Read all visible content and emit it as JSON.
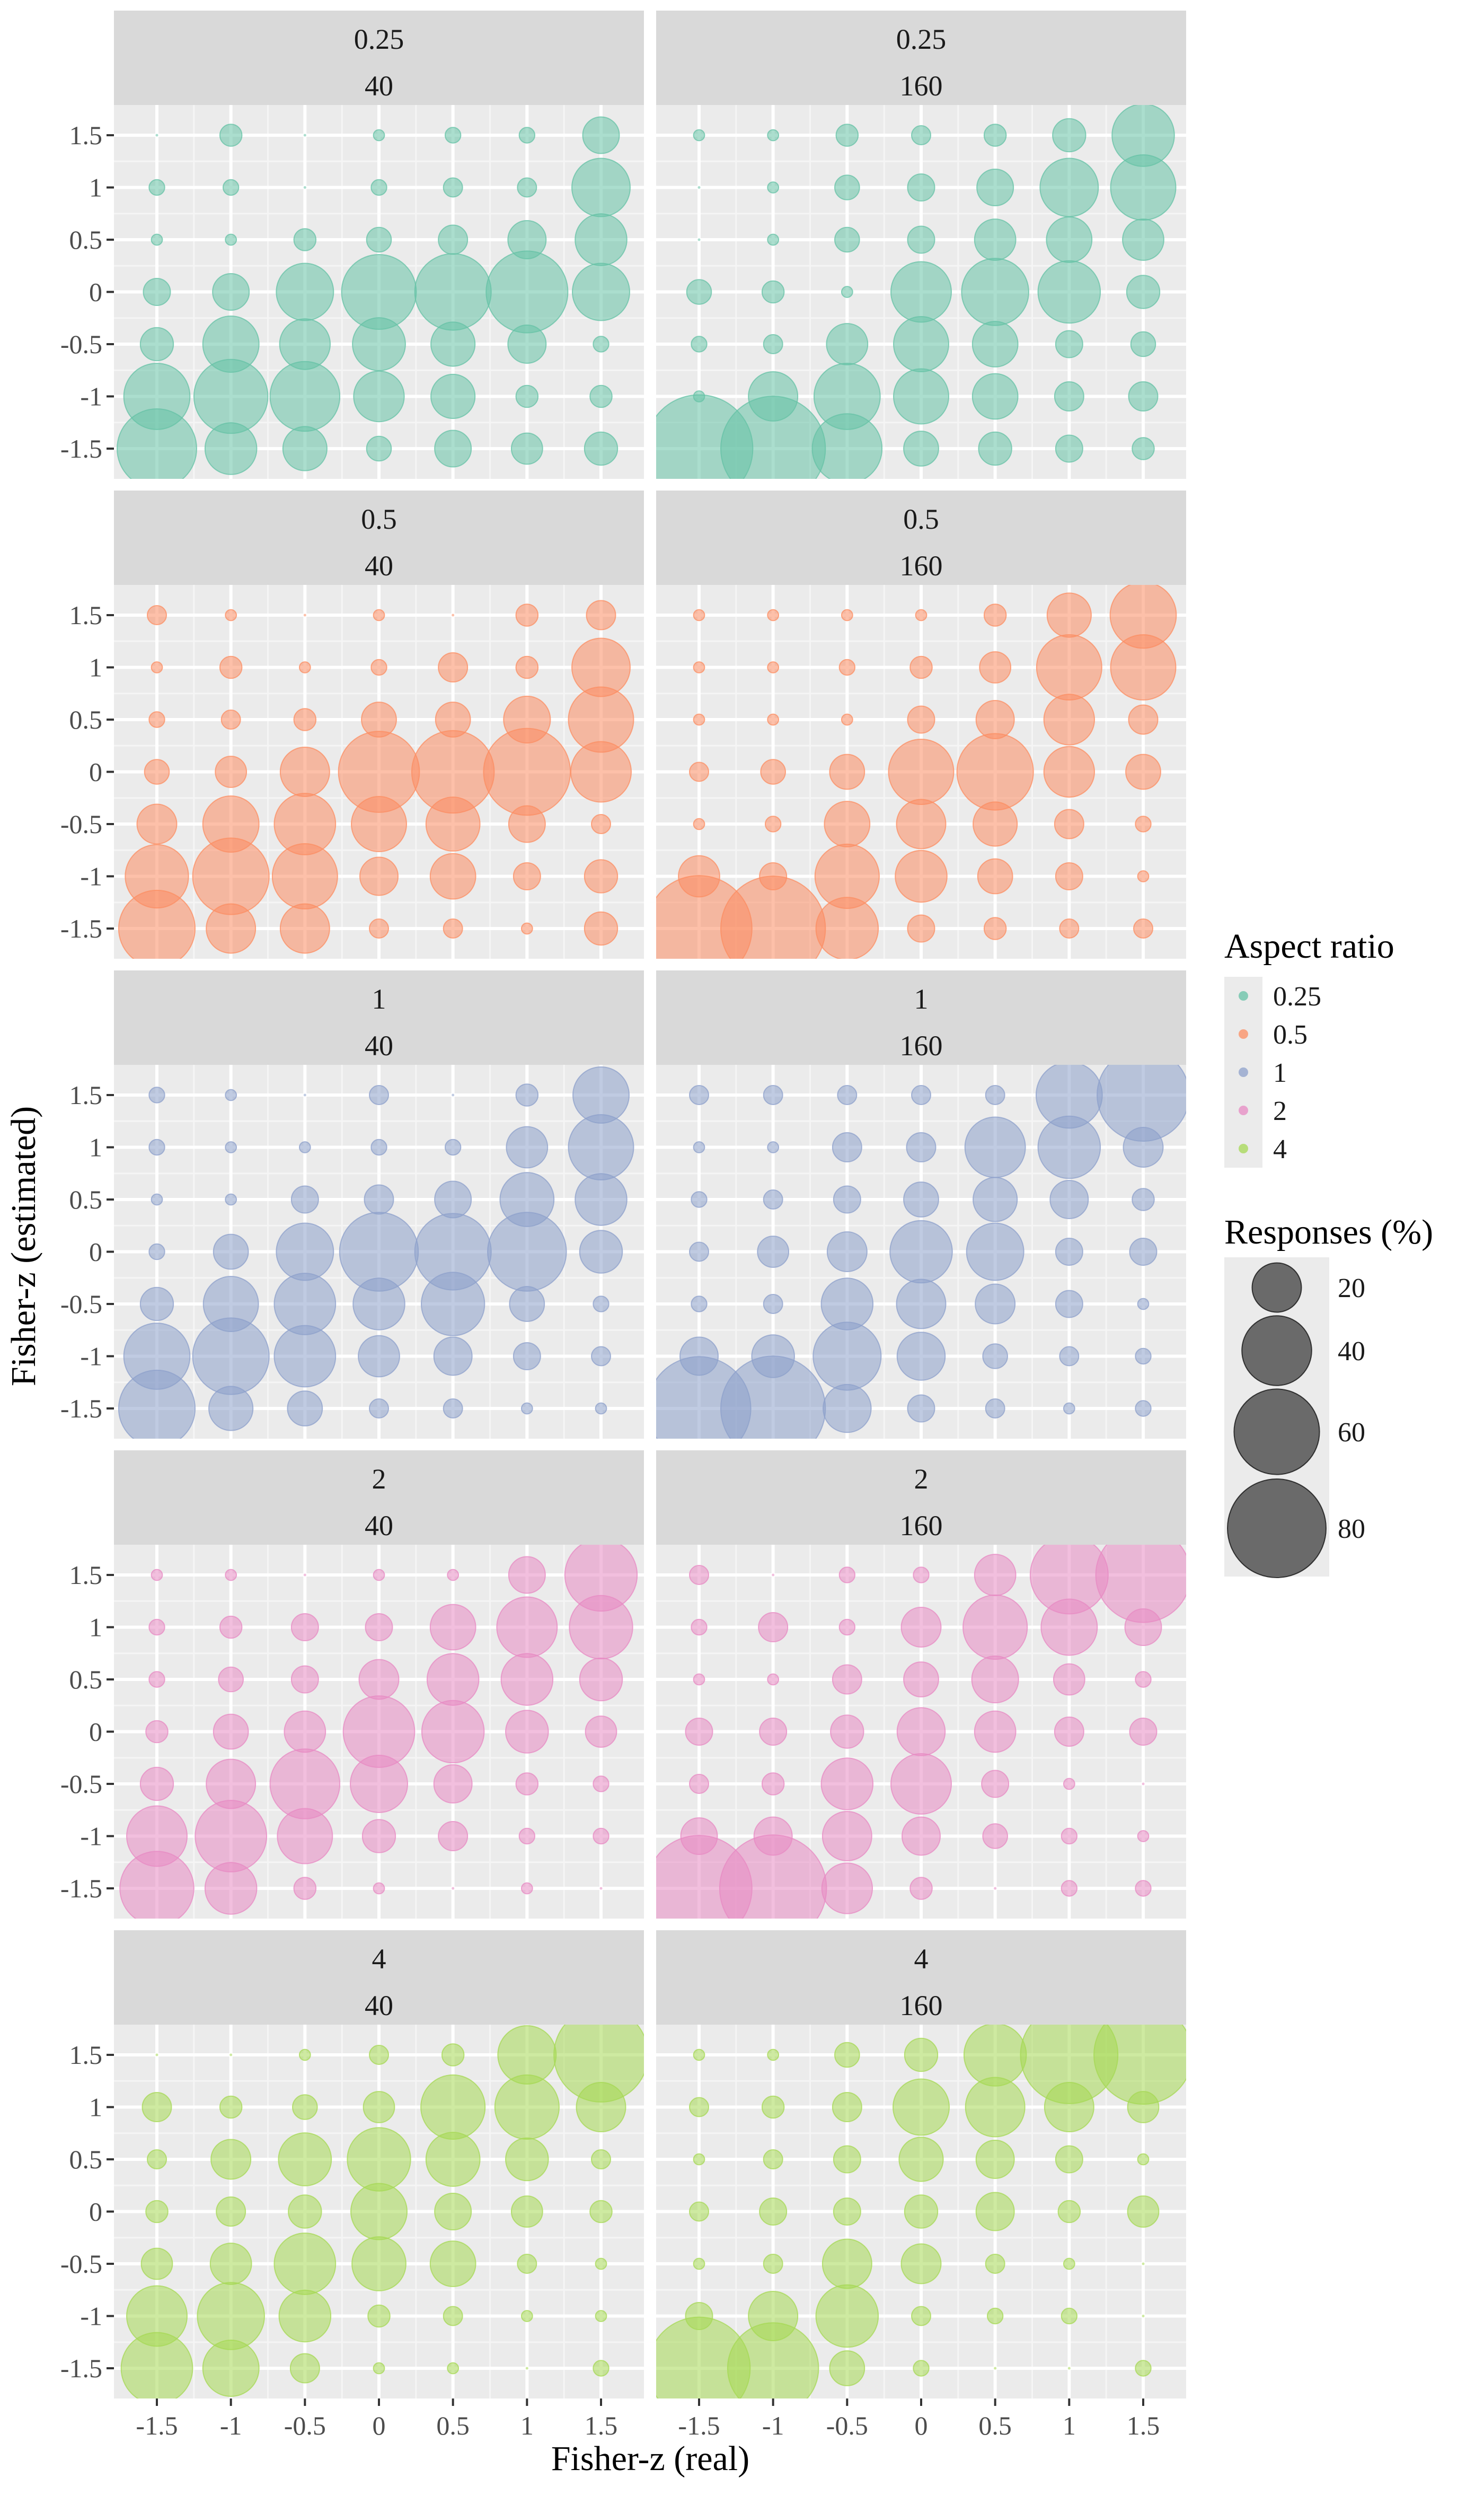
{
  "chart_data": {
    "type": "scatter",
    "subtype": "bubble",
    "facet_rows_label": "Aspect ratio",
    "facet_cols_label": "",
    "rows": [
      "0.25",
      "0.5",
      "1",
      "2",
      "4"
    ],
    "cols": [
      "40",
      "160"
    ],
    "xlabel": "Fisher-z (real)",
    "ylabel": "Fisher-z (estimated)",
    "x_ticks": [
      -1.5,
      -1,
      -0.5,
      0,
      0.5,
      1,
      1.5
    ],
    "y_ticks": [
      -1.5,
      -1,
      -0.5,
      0,
      0.5,
      1,
      1.5
    ],
    "x_tick_labels": [
      "-1.5",
      "-1",
      "-0.5",
      "0",
      "0.5",
      "1",
      "1.5"
    ],
    "y_tick_labels": [
      "-1.5",
      "-1",
      "-0.5",
      "0",
      "0.5",
      "1",
      "1.5"
    ],
    "xlim": [
      -1.5,
      1.5
    ],
    "ylim": [
      -1.5,
      1.5
    ],
    "grid": true,
    "legend_color": {
      "title": "Aspect ratio",
      "entries": [
        {
          "label": "0.25",
          "color": "#66c2a5"
        },
        {
          "label": "0.5",
          "color": "#fc8d62"
        },
        {
          "label": "1",
          "color": "#8da0cb"
        },
        {
          "label": "2",
          "color": "#e78ac3"
        },
        {
          "label": "4",
          "color": "#a6d854"
        }
      ]
    },
    "legend_size": {
      "title": "Responses (%)",
      "entries": [
        {
          "label": "20",
          "value": 20
        },
        {
          "label": "40",
          "value": 40
        },
        {
          "label": "60",
          "value": 60
        },
        {
          "label": "80",
          "value": 80
        }
      ]
    },
    "note": "Each panel is a 7x7 matrix of response percentages; rows = estimated z from 1.5 (top) to -1.5 (bottom), columns = real z from -1.5 to 1.5.",
    "panels": [
      {
        "row": "0.25",
        "col": "40",
        "color": "#66c2a5",
        "matrix": [
          [
            0,
            4,
            0,
            1,
            2,
            2,
            11
          ],
          [
            2,
            2,
            0,
            2,
            3,
            3,
            28
          ],
          [
            1,
            1,
            4,
            5,
            7,
            12,
            22
          ],
          [
            6,
            11,
            27,
            46,
            48,
            55,
            27
          ],
          [
            9,
            26,
            21,
            23,
            16,
            12,
            2
          ],
          [
            36,
            45,
            40,
            21,
            16,
            4,
            4
          ],
          [
            52,
            22,
            16,
            5,
            11,
            8,
            9
          ]
        ]
      },
      {
        "row": "0.25",
        "col": "160",
        "color": "#66c2a5",
        "matrix": [
          [
            1,
            1,
            4,
            3,
            4,
            9,
            32
          ],
          [
            0,
            1,
            5,
            6,
            11,
            28,
            35
          ],
          [
            0,
            1,
            5,
            6,
            14,
            17,
            14
          ],
          [
            5,
            4,
            1,
            30,
            37,
            32,
            9
          ],
          [
            2,
            3,
            14,
            25,
            17,
            6,
            5
          ],
          [
            1,
            20,
            36,
            25,
            17,
            7,
            7
          ],
          [
            95,
            90,
            40,
            10,
            9,
            6,
            4
          ]
        ]
      },
      {
        "row": "0.5",
        "col": "40",
        "color": "#fc8d62",
        "matrix": [
          [
            3,
            1,
            0,
            1,
            0,
            4,
            7
          ],
          [
            1,
            4,
            1,
            2,
            7,
            4,
            28
          ],
          [
            2,
            3,
            4,
            10,
            10,
            18,
            35
          ],
          [
            5,
            8,
            20,
            54,
            56,
            62,
            30
          ],
          [
            13,
            26,
            31,
            25,
            24,
            11,
            3
          ],
          [
            33,
            48,
            35,
            12,
            17,
            6,
            9
          ],
          [
            48,
            20,
            20,
            3,
            3,
            1,
            9
          ]
        ]
      },
      {
        "row": "0.5",
        "col": "160",
        "color": "#fc8d62",
        "matrix": [
          [
            1,
            1,
            1,
            1,
            4,
            16,
            36
          ],
          [
            1,
            1,
            2,
            4,
            8,
            35,
            35
          ],
          [
            1,
            1,
            1,
            6,
            12,
            21,
            7
          ],
          [
            3,
            5,
            10,
            35,
            48,
            21,
            10
          ],
          [
            1,
            2,
            17,
            20,
            16,
            7,
            2
          ],
          [
            14,
            6,
            34,
            22,
            10,
            6,
            1
          ],
          [
            92,
            90,
            32,
            6,
            4,
            3,
            3
          ]
        ]
      },
      {
        "row": "1",
        "col": "40",
        "color": "#8da0cb",
        "matrix": [
          [
            2,
            1,
            0,
            3,
            0,
            4,
            26
          ],
          [
            2,
            1,
            1,
            2,
            2,
            14,
            35
          ],
          [
            1,
            1,
            6,
            7,
            11,
            24,
            22
          ],
          [
            2,
            10,
            27,
            51,
            48,
            51,
            15
          ],
          [
            9,
            25,
            31,
            22,
            33,
            10,
            2
          ],
          [
            36,
            48,
            31,
            14,
            12,
            6,
            3
          ],
          [
            48,
            16,
            10,
            3,
            3,
            1,
            1
          ]
        ]
      },
      {
        "row": "1",
        "col": "160",
        "color": "#8da0cb",
        "matrix": [
          [
            3,
            3,
            3,
            3,
            3,
            36,
            70
          ],
          [
            1,
            1,
            7,
            7,
            30,
            32,
            13
          ],
          [
            2,
            3,
            6,
            10,
            16,
            12,
            4
          ],
          [
            3,
            8,
            13,
            32,
            27,
            6,
            6
          ],
          [
            2,
            3,
            22,
            20,
            13,
            6,
            1
          ],
          [
            12,
            15,
            38,
            19,
            5,
            3,
            2
          ],
          [
            88,
            90,
            19,
            6,
            3,
            1,
            2
          ]
        ]
      },
      {
        "row": "2",
        "col": "40",
        "color": "#e78ac3",
        "matrix": [
          [
            1,
            1,
            0,
            1,
            1,
            11,
            43
          ],
          [
            2,
            4,
            6,
            6,
            17,
            30,
            33
          ],
          [
            2,
            5,
            6,
            13,
            22,
            22,
            15
          ],
          [
            4,
            10,
            14,
            42,
            32,
            15,
            8
          ],
          [
            9,
            20,
            40,
            27,
            12,
            4,
            2
          ],
          [
            30,
            42,
            25,
            9,
            7,
            2,
            2
          ],
          [
            45,
            22,
            4,
            1,
            0,
            1,
            0
          ]
        ]
      },
      {
        "row": "2",
        "col": "160",
        "color": "#e78ac3",
        "matrix": [
          [
            3,
            0,
            2,
            2,
            14,
            50,
            74
          ],
          [
            2,
            7,
            2,
            13,
            34,
            26,
            11
          ],
          [
            1,
            1,
            7,
            10,
            18,
            8,
            2
          ],
          [
            6,
            6,
            9,
            19,
            14,
            7,
            6
          ],
          [
            3,
            4,
            22,
            30,
            6,
            1,
            0
          ],
          [
            11,
            12,
            20,
            12,
            5,
            2,
            1
          ],
          [
            92,
            94,
            21,
            4,
            0,
            2,
            2
          ]
        ]
      },
      {
        "row": "4",
        "col": "40",
        "color": "#a6d854",
        "matrix": [
          [
            0,
            0,
            1,
            3,
            4,
            28,
            73
          ],
          [
            7,
            4,
            5,
            8,
            34,
            34,
            20
          ],
          [
            3,
            13,
            23,
            33,
            24,
            15,
            3
          ],
          [
            4,
            7,
            9,
            26,
            11,
            8,
            4
          ],
          [
            8,
            14,
            31,
            24,
            17,
            3,
            1
          ],
          [
            30,
            37,
            22,
            4,
            3,
            1,
            1
          ],
          [
            42,
            26,
            7,
            1,
            1,
            0,
            2
          ]
        ]
      },
      {
        "row": "4",
        "col": "160",
        "color": "#a6d854",
        "matrix": [
          [
            1,
            1,
            5,
            9,
            32,
            78,
            80
          ],
          [
            3,
            4,
            7,
            26,
            29,
            20,
            8
          ],
          [
            1,
            3,
            6,
            16,
            12,
            6,
            1
          ],
          [
            3,
            6,
            6,
            9,
            12,
            4,
            8
          ],
          [
            1,
            3,
            20,
            13,
            3,
            1,
            0
          ],
          [
            6,
            20,
            32,
            3,
            2,
            2,
            0
          ],
          [
            86,
            68,
            10,
            2,
            0,
            0,
            2
          ]
        ]
      }
    ]
  }
}
